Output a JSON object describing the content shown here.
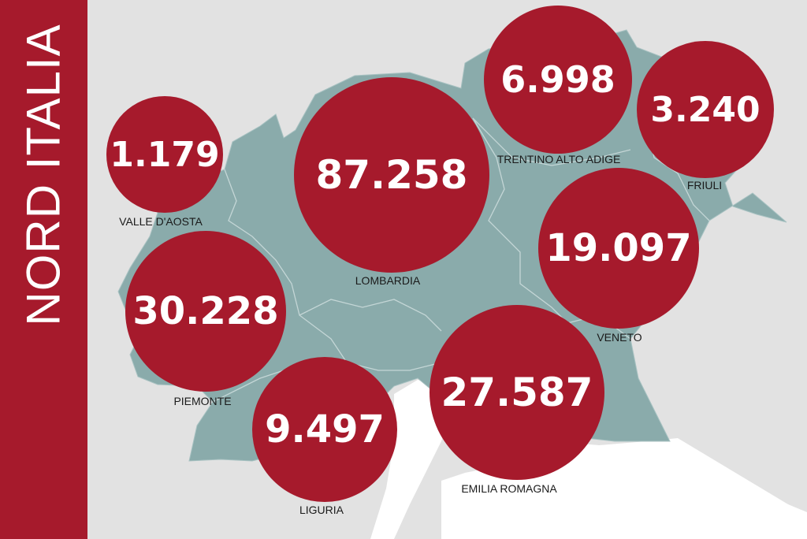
{
  "title": "NORD ITALIA",
  "colors": {
    "accent": "#a61a2c",
    "land_north": "#8aabab",
    "land_other": "#ffffff",
    "background": "#e2e2e2",
    "label_text": "#1a1a1a"
  },
  "regions": [
    {
      "key": "valle_daosta",
      "name": "VALLE D'AOSTA",
      "value": "1.179"
    },
    {
      "key": "piemonte",
      "name": "PIEMONTE",
      "value": "30.228"
    },
    {
      "key": "liguria",
      "name": "LIGURIA",
      "value": "9.497"
    },
    {
      "key": "lombardia",
      "name": "LOMBARDIA",
      "value": "87.258"
    },
    {
      "key": "trentino_alto_adige",
      "name": "TRENTINO ALTO ADIGE",
      "value": "6.998"
    },
    {
      "key": "friuli",
      "name": "FRIULI",
      "value": "3.240"
    },
    {
      "key": "veneto",
      "name": "VENETO",
      "value": "19.097"
    },
    {
      "key": "emilia_romagna",
      "name": "EMILIA ROMAGNA",
      "value": "27.587"
    }
  ]
}
